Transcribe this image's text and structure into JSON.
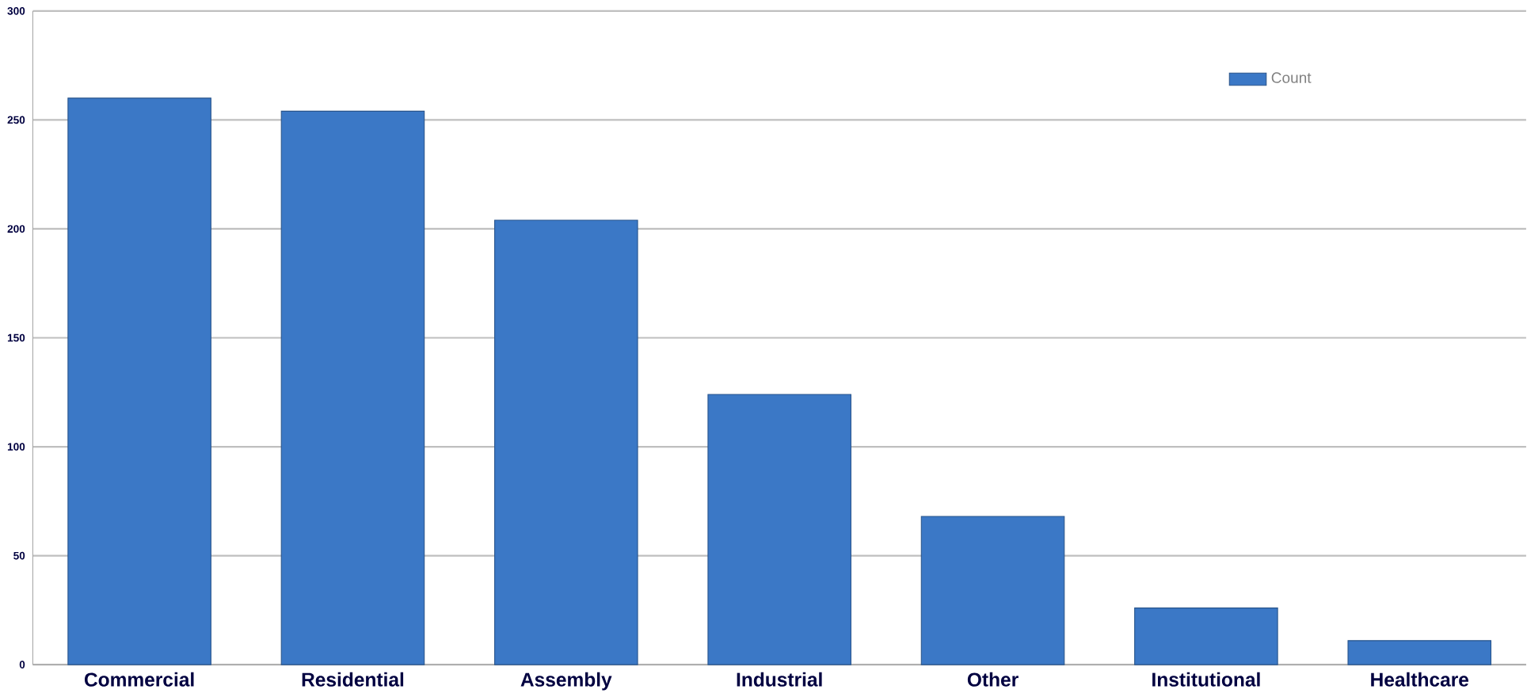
{
  "chart_data": {
    "type": "bar",
    "categories": [
      "Commercial",
      "Residential",
      "Assembly",
      "Industrial",
      "Other",
      "Institutional",
      "Healthcare"
    ],
    "series": [
      {
        "name": "Count",
        "color": "#3b78c6",
        "values": [
          260,
          254,
          204,
          124,
          68,
          26,
          11
        ]
      }
    ],
    "ylim": [
      0,
      300
    ],
    "yticks": [
      0,
      50,
      100,
      150,
      200,
      250,
      300
    ],
    "grid": "y",
    "legend": "top right"
  }
}
